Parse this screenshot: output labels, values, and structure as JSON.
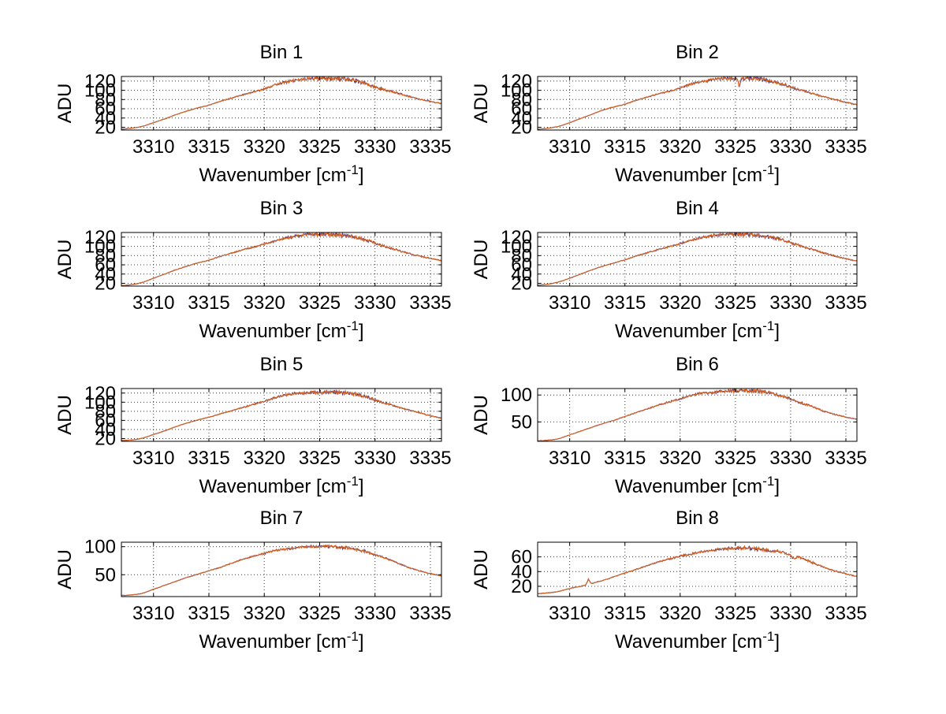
{
  "figure": {
    "background": "#ffffff",
    "grid_color": "#3c3c3c",
    "axis_color": "#000000",
    "text_color": "#000000",
    "primary_line_color": "#d9601e",
    "secondary_line_color": "#3f3080"
  },
  "x_points": [
    3307.1,
    3308,
    3309,
    3310,
    3311,
    3312,
    3313,
    3314,
    3315,
    3316,
    3317,
    3318,
    3319,
    3320,
    3321,
    3322,
    3323,
    3324,
    3325,
    3326,
    3327,
    3328,
    3329,
    3330,
    3331,
    3332,
    3333,
    3334,
    3335,
    3336
  ],
  "chart_data": [
    {
      "type": "line",
      "title": "Bin 1",
      "xlabel": {
        "pre": "Wavenumber [cm",
        "sup": "-1",
        "post": "]"
      },
      "ylabel": "ADU",
      "xlim": [
        3307.1,
        3336
      ],
      "ylim": [
        14,
        130
      ],
      "x_ticks": [
        3310,
        3315,
        3320,
        3325,
        3330,
        3335
      ],
      "y_ticks": [
        20,
        40,
        60,
        80,
        100,
        120
      ],
      "grid": true,
      "legend": "none",
      "series": [
        {
          "name": "spectrum-secondary",
          "color": "#3f3080"
        },
        {
          "name": "spectrum-primary",
          "color": "#d9601e"
        }
      ],
      "y_points": [
        16,
        18,
        22,
        30,
        38,
        47,
        55,
        62,
        68,
        76,
        83,
        90,
        96,
        103,
        112,
        118,
        122,
        125,
        126,
        126,
        125,
        122,
        116,
        107,
        100,
        94,
        87,
        81,
        76,
        71
      ],
      "seed": 11,
      "noise_amp": 3.2,
      "spikes": []
    },
    {
      "type": "line",
      "title": "Bin 2",
      "xlabel": {
        "pre": "Wavenumber [cm",
        "sup": "-1",
        "post": "]"
      },
      "ylabel": "ADU",
      "xlim": [
        3307.1,
        3336
      ],
      "ylim": [
        14,
        130
      ],
      "x_ticks": [
        3310,
        3315,
        3320,
        3325,
        3330,
        3335
      ],
      "y_ticks": [
        20,
        40,
        60,
        80,
        100,
        120
      ],
      "grid": true,
      "legend": "none",
      "series": [
        {
          "name": "spectrum-secondary",
          "color": "#3f3080"
        },
        {
          "name": "spectrum-primary",
          "color": "#d9601e"
        }
      ],
      "y_points": [
        16,
        18,
        22,
        30,
        39,
        48,
        57,
        64,
        70,
        78,
        85,
        92,
        98,
        105,
        113,
        119,
        123,
        126,
        127,
        126,
        125,
        121,
        115,
        107,
        100,
        93,
        86,
        80,
        74,
        69
      ],
      "seed": 22,
      "noise_amp": 3.2,
      "spikes": [
        {
          "x": 3325.35,
          "dy": -20,
          "w": 0.18
        }
      ]
    },
    {
      "type": "line",
      "title": "Bin 3",
      "xlabel": {
        "pre": "Wavenumber [cm",
        "sup": "-1",
        "post": "]"
      },
      "ylabel": "ADU",
      "xlim": [
        3307.1,
        3336
      ],
      "ylim": [
        14,
        130
      ],
      "x_ticks": [
        3310,
        3315,
        3320,
        3325,
        3330,
        3335
      ],
      "y_ticks": [
        20,
        40,
        60,
        80,
        100,
        120
      ],
      "grid": true,
      "legend": "none",
      "series": [
        {
          "name": "spectrum-secondary",
          "color": "#3f3080"
        },
        {
          "name": "spectrum-primary",
          "color": "#d9601e"
        }
      ],
      "y_points": [
        15,
        17,
        22,
        31,
        40,
        49,
        57,
        64,
        70,
        78,
        85,
        92,
        98,
        105,
        112,
        118,
        123,
        126,
        126,
        126,
        124,
        121,
        115,
        107,
        99,
        92,
        85,
        79,
        74,
        69
      ],
      "seed": 33,
      "noise_amp": 3.2,
      "spikes": []
    },
    {
      "type": "line",
      "title": "Bin 4",
      "xlabel": {
        "pre": "Wavenumber [cm",
        "sup": "-1",
        "post": "]"
      },
      "ylabel": "ADU",
      "xlim": [
        3307.1,
        3336
      ],
      "ylim": [
        14,
        130
      ],
      "x_ticks": [
        3310,
        3315,
        3320,
        3325,
        3330,
        3335
      ],
      "y_ticks": [
        20,
        40,
        60,
        80,
        100,
        120
      ],
      "grid": true,
      "legend": "none",
      "series": [
        {
          "name": "spectrum-secondary",
          "color": "#3f3080"
        },
        {
          "name": "spectrum-primary",
          "color": "#d9601e"
        }
      ],
      "y_points": [
        16,
        18,
        23,
        31,
        40,
        49,
        57,
        64,
        71,
        79,
        86,
        93,
        99,
        106,
        113,
        119,
        123,
        125,
        126,
        126,
        124,
        121,
        116,
        108,
        100,
        93,
        86,
        79,
        73,
        68
      ],
      "seed": 44,
      "noise_amp": 3.2,
      "spikes": []
    },
    {
      "type": "line",
      "title": "Bin 5",
      "xlabel": {
        "pre": "Wavenumber [cm",
        "sup": "-1",
        "post": "]"
      },
      "ylabel": "ADU",
      "xlim": [
        3307.1,
        3336
      ],
      "ylim": [
        14,
        130
      ],
      "x_ticks": [
        3310,
        3315,
        3320,
        3325,
        3330,
        3335
      ],
      "y_ticks": [
        20,
        40,
        60,
        80,
        100,
        120
      ],
      "grid": true,
      "legend": "none",
      "series": [
        {
          "name": "spectrum-secondary",
          "color": "#3f3080"
        },
        {
          "name": "spectrum-primary",
          "color": "#d9601e"
        }
      ],
      "y_points": [
        16,
        17,
        21,
        29,
        37,
        46,
        54,
        61,
        67,
        74,
        81,
        88,
        95,
        102,
        110,
        116,
        119,
        121,
        122,
        122,
        121,
        119,
        113,
        105,
        97,
        90,
        83,
        77,
        70,
        65
      ],
      "seed": 55,
      "noise_amp": 3.2,
      "spikes": []
    },
    {
      "type": "line",
      "title": "Bin 6",
      "xlabel": {
        "pre": "Wavenumber [cm",
        "sup": "-1",
        "post": "]"
      },
      "ylabel": "ADU",
      "xlim": [
        3307.1,
        3336
      ],
      "ylim": [
        14,
        112
      ],
      "x_ticks": [
        3310,
        3315,
        3320,
        3325,
        3330,
        3335
      ],
      "y_ticks": [
        50,
        100
      ],
      "grid": true,
      "legend": "none",
      "series": [
        {
          "name": "spectrum-secondary",
          "color": "#3f3080"
        },
        {
          "name": "spectrum-primary",
          "color": "#d9601e"
        }
      ],
      "y_points": [
        15,
        16,
        19,
        26,
        33,
        40,
        47,
        53,
        60,
        67,
        74,
        81,
        87,
        93,
        99,
        103,
        105,
        107,
        108,
        108,
        107,
        104,
        99,
        92,
        85,
        78,
        70,
        64,
        59,
        55
      ],
      "seed": 66,
      "noise_amp": 2.6,
      "spikes": []
    },
    {
      "type": "line",
      "title": "Bin 7",
      "xlabel": {
        "pre": "Wavenumber [cm",
        "sup": "-1",
        "post": "]"
      },
      "ylabel": "ADU",
      "xlim": [
        3307.1,
        3336
      ],
      "ylim": [
        11,
        108
      ],
      "x_ticks": [
        3310,
        3315,
        3320,
        3325,
        3330,
        3335
      ],
      "y_ticks": [
        50,
        100
      ],
      "grid": true,
      "legend": "none",
      "series": [
        {
          "name": "spectrum-secondary",
          "color": "#3f3080"
        },
        {
          "name": "spectrum-primary",
          "color": "#d9601e"
        }
      ],
      "y_points": [
        13,
        14,
        17,
        24,
        31,
        38,
        45,
        51,
        57,
        63,
        70,
        77,
        83,
        88,
        93,
        96,
        98,
        100,
        100,
        100,
        99,
        96,
        92,
        86,
        79,
        71,
        63,
        57,
        52,
        48
      ],
      "seed": 77,
      "noise_amp": 2.2,
      "spikes": []
    },
    {
      "type": "line",
      "title": "Bin 8",
      "xlabel": {
        "pre": "Wavenumber [cm",
        "sup": "-1",
        "post": "]"
      },
      "ylabel": "ADU",
      "xlim": [
        3307.1,
        3336
      ],
      "ylim": [
        6,
        80
      ],
      "x_ticks": [
        3310,
        3315,
        3320,
        3325,
        3330,
        3335
      ],
      "y_ticks": [
        20,
        40,
        60
      ],
      "grid": true,
      "legend": "none",
      "series": [
        {
          "name": "spectrum-secondary",
          "color": "#3f3080"
        },
        {
          "name": "spectrum-primary",
          "color": "#d9601e"
        }
      ],
      "y_points": [
        10,
        11,
        13,
        17,
        20,
        24,
        28,
        33,
        38,
        43,
        48,
        53,
        57,
        61,
        64,
        67,
        69,
        71,
        72,
        72,
        71,
        69,
        67,
        63,
        58,
        52,
        46,
        41,
        37,
        33
      ],
      "seed": 88,
      "noise_amp": 2.0,
      "spikes": [
        {
          "x": 3311.7,
          "dy": 7,
          "w": 0.25
        },
        {
          "x": 3330.3,
          "dy": -4,
          "w": 0.35
        }
      ]
    }
  ]
}
